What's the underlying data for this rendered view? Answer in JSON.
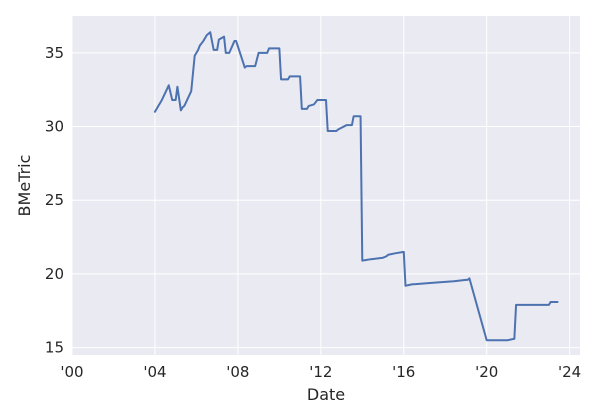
{
  "chart_data": {
    "type": "line",
    "title": "",
    "xlabel": "Date",
    "ylabel": "BMeTric",
    "xlim": [
      "2000-01-01",
      "2024-07-01"
    ],
    "ylim": [
      14.5,
      37.5
    ],
    "x_ticks": [
      {
        "date": "2000-01-01",
        "label": "'00"
      },
      {
        "date": "2004-01-01",
        "label": "'04"
      },
      {
        "date": "2008-01-01",
        "label": "'08"
      },
      {
        "date": "2012-01-01",
        "label": "'12"
      },
      {
        "date": "2016-01-01",
        "label": "'16"
      },
      {
        "date": "2020-01-01",
        "label": "'20"
      },
      {
        "date": "2024-01-01",
        "label": "'24"
      }
    ],
    "y_ticks": [
      15,
      20,
      25,
      30,
      35
    ],
    "grid": true,
    "colors": {
      "background": "#eaeaf2",
      "grid": "#ffffff",
      "line": "#4c72b0",
      "text": "#262626"
    },
    "series": [
      {
        "name": "",
        "x": [
          "2004-01-01",
          "2004-03-01",
          "2004-04-01",
          "2004-05-01",
          "2004-07-01",
          "2004-09-01",
          "2004-11-01",
          "2005-01-01",
          "2005-02-01",
          "2005-04-01",
          "2005-05-01",
          "2005-06-01",
          "2005-08-01",
          "2005-10-01",
          "2005-12-01",
          "2006-01-01",
          "2006-02-01",
          "2006-03-01",
          "2006-05-01",
          "2006-07-01",
          "2006-09-01",
          "2006-11-01",
          "2007-01-01",
          "2007-02-01",
          "2007-05-01",
          "2007-06-01",
          "2007-08-01",
          "2007-11-01",
          "2007-12-01",
          "2008-05-01",
          "2008-06-01",
          "2008-11-01",
          "2009-01-01",
          "2009-06-01",
          "2009-07-01",
          "2010-01-01",
          "2010-02-01",
          "2010-06-01",
          "2010-07-01",
          "2011-01-01",
          "2011-02-01",
          "2011-05-01",
          "2011-06-01",
          "2011-09-01",
          "2011-11-01",
          "2012-04-01",
          "2012-05-01",
          "2012-10-01",
          "2012-11-01",
          "2013-04-01",
          "2013-07-01",
          "2013-08-01",
          "2013-12-01",
          "2014-01-01",
          "2014-06-01",
          "2015-01-01",
          "2015-03-01",
          "2015-04-01",
          "2015-08-01",
          "2016-01-01",
          "2016-02-01",
          "2016-06-01",
          "2016-07-01",
          "2017-06-01",
          "2018-06-01",
          "2019-01-01",
          "2019-02-01",
          "2019-03-01",
          "2020-01-01",
          "2020-06-01",
          "2021-01-01",
          "2021-05-01",
          "2021-06-01",
          "2022-06-01",
          "2023-01-01",
          "2023-02-01",
          "2023-06-01"
        ],
        "y": [
          31.0,
          31.4,
          31.6,
          31.8,
          32.3,
          32.8,
          31.8,
          31.8,
          32.7,
          31.1,
          31.3,
          31.4,
          31.9,
          32.4,
          34.8,
          35.0,
          35.2,
          35.5,
          35.8,
          36.2,
          36.4,
          35.2,
          35.2,
          35.9,
          36.1,
          35.0,
          35.0,
          35.8,
          35.8,
          34.0,
          34.1,
          34.1,
          35.0,
          35.0,
          35.3,
          35.3,
          33.2,
          33.2,
          33.4,
          33.4,
          31.2,
          31.2,
          31.4,
          31.5,
          31.8,
          31.8,
          29.7,
          29.7,
          29.8,
          30.1,
          30.1,
          30.7,
          30.7,
          20.9,
          21.0,
          21.1,
          21.2,
          21.3,
          21.4,
          21.5,
          19.2,
          19.3,
          19.3,
          19.4,
          19.5,
          19.6,
          19.6,
          19.7,
          15.5,
          15.5,
          15.5,
          15.6,
          17.9,
          17.9,
          17.9,
          18.1,
          18.1
        ]
      }
    ]
  }
}
